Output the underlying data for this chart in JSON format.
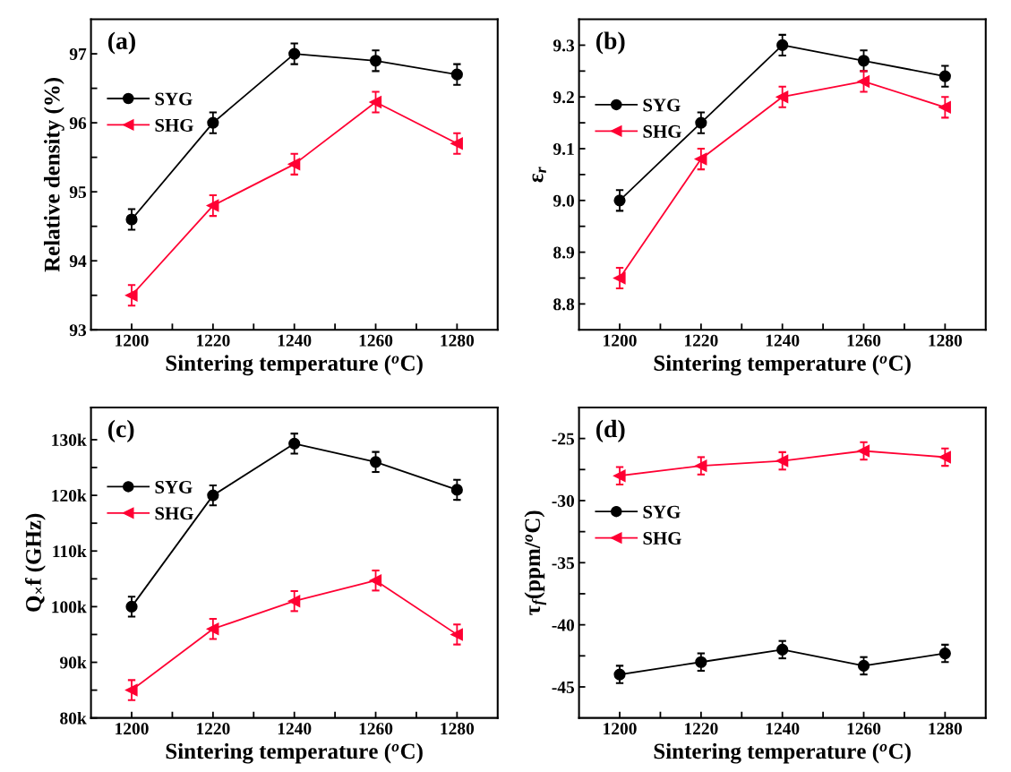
{
  "chart_data": [
    {
      "type": "line",
      "xlabel": "Sintering temperature ($^{o}$C)",
      "ylabel": "Relative density (%)",
      "annotations": [
        "(a)"
      ],
      "legend": "upper left",
      "grid": false,
      "x": [
        1200,
        1220,
        1240,
        1260,
        1280
      ],
      "xlim": [
        1190,
        1290
      ],
      "xticks": [
        1200,
        {
          "value": 1210,
          "label": null
        },
        1220,
        {
          "value": 1230,
          "label": null
        },
        1240,
        {
          "value": 1250,
          "label": null
        },
        1260,
        {
          "value": 1270,
          "label": null
        },
        1280
      ],
      "ylim": [
        93,
        97.5
      ],
      "yticks": [
        93,
        {
          "value": 93.5,
          "label": null
        },
        94,
        {
          "value": 94.5,
          "label": null
        },
        95,
        {
          "value": 95.5,
          "label": null
        },
        96,
        {
          "value": 96.5,
          "label": null
        },
        97
      ],
      "series": [
        {
          "name": "SYG",
          "color": "#000000",
          "marker": "circle",
          "values": [
            94.6,
            96.0,
            97.0,
            96.9,
            96.7
          ],
          "errors": [
            0.15,
            0.15,
            0.15,
            0.15,
            0.15
          ]
        },
        {
          "name": "SHG",
          "color": "#ff0033",
          "marker": "triangle",
          "values": [
            93.5,
            94.8,
            95.4,
            96.3,
            95.7
          ],
          "errors": [
            0.15,
            0.15,
            0.15,
            0.15,
            0.15
          ]
        }
      ]
    },
    {
      "type": "line",
      "xlabel": "Sintering temperature ($^{o}$C)",
      "ylabel": "ε$_{r}$",
      "annotations": [
        "(b)"
      ],
      "legend": "upper left",
      "grid": false,
      "x": [
        1200,
        1220,
        1240,
        1260,
        1280
      ],
      "xlim": [
        1190,
        1290
      ],
      "xticks": [
        1200,
        {
          "value": 1210,
          "label": null
        },
        1220,
        {
          "value": 1230,
          "label": null
        },
        1240,
        {
          "value": 1250,
          "label": null
        },
        1260,
        {
          "value": 1270,
          "label": null
        },
        1280
      ],
      "ylim": [
        8.75,
        9.35
      ],
      "yticks": [
        {
          "value": 8.8,
          "label": "8.8"
        },
        {
          "value": 8.85,
          "label": null
        },
        {
          "value": 8.9,
          "label": "8.9"
        },
        {
          "value": 8.95,
          "label": null
        },
        {
          "value": 9.0,
          "label": "9.0"
        },
        {
          "value": 9.05,
          "label": null
        },
        {
          "value": 9.1,
          "label": "9.1"
        },
        {
          "value": 9.15,
          "label": null
        },
        {
          "value": 9.2,
          "label": "9.2"
        },
        {
          "value": 9.25,
          "label": null
        },
        {
          "value": 9.3,
          "label": "9.3"
        }
      ],
      "series": [
        {
          "name": "SYG",
          "color": "#000000",
          "marker": "circle",
          "values": [
            9.0,
            9.15,
            9.3,
            9.27,
            9.24
          ],
          "errors": [
            0.02,
            0.02,
            0.02,
            0.02,
            0.02
          ]
        },
        {
          "name": "SHG",
          "color": "#ff0033",
          "marker": "triangle",
          "values": [
            8.85,
            9.08,
            9.2,
            9.23,
            9.18
          ],
          "errors": [
            0.02,
            0.02,
            0.02,
            0.02,
            0.02
          ]
        }
      ]
    },
    {
      "type": "line",
      "xlabel": "Sintering temperature ($^{o}$C)",
      "ylabel": "Q$_{×}$f (GHz)",
      "annotations": [
        "(c)"
      ],
      "legend": "upper left",
      "grid": false,
      "x": [
        1200,
        1220,
        1240,
        1260,
        1280
      ],
      "xlim": [
        1190,
        1290
      ],
      "xticks": [
        1200,
        {
          "value": 1210,
          "label": null
        },
        1220,
        {
          "value": 1230,
          "label": null
        },
        1240,
        {
          "value": 1250,
          "label": null
        },
        1260,
        {
          "value": 1270,
          "label": null
        },
        1280
      ],
      "ylim": [
        80000,
        135800
      ],
      "yticks": [
        {
          "value": 80000,
          "label": "80k"
        },
        {
          "value": 85000,
          "label": null
        },
        {
          "value": 90000,
          "label": "90k"
        },
        {
          "value": 95000,
          "label": null
        },
        {
          "value": 100000,
          "label": "100k"
        },
        {
          "value": 105000,
          "label": null
        },
        {
          "value": 110000,
          "label": "110k"
        },
        {
          "value": 115000,
          "label": null
        },
        {
          "value": 120000,
          "label": "120k"
        },
        {
          "value": 125000,
          "label": null
        },
        {
          "value": 130000,
          "label": "130k"
        }
      ],
      "series": [
        {
          "name": "SYG",
          "color": "#000000",
          "marker": "circle",
          "values": [
            100000,
            120000,
            129300,
            126000,
            121000
          ],
          "errors": [
            1800,
            1800,
            1800,
            1800,
            1800
          ]
        },
        {
          "name": "SHG",
          "color": "#ff0033",
          "marker": "triangle",
          "values": [
            85000,
            96000,
            101000,
            104700,
            95000
          ],
          "errors": [
            1800,
            1800,
            1800,
            1800,
            1800
          ]
        }
      ]
    },
    {
      "type": "line",
      "xlabel": "Sintering temperature ($^{o}$C)",
      "ylabel": "τ$_{f}$(ppm/$^{o}$C)",
      "annotations": [
        "(d)"
      ],
      "legend": "upper left",
      "grid": false,
      "x": [
        1200,
        1220,
        1240,
        1260,
        1280
      ],
      "xlim": [
        1190,
        1290
      ],
      "xticks": [
        1200,
        {
          "value": 1210,
          "label": null
        },
        1220,
        {
          "value": 1230,
          "label": null
        },
        1240,
        {
          "value": 1250,
          "label": null
        },
        1260,
        {
          "value": 1270,
          "label": null
        },
        1280
      ],
      "ylim": [
        -47.5,
        -22.5
      ],
      "yticks": [
        -45,
        {
          "value": -42.5,
          "label": null
        },
        -40,
        {
          "value": -37.5,
          "label": null
        },
        -35,
        {
          "value": -32.5,
          "label": null
        },
        -30,
        {
          "value": -27.5,
          "label": null
        },
        -25
      ],
      "series": [
        {
          "name": "SYG",
          "color": "#000000",
          "marker": "circle",
          "values": [
            -44,
            -43,
            -42,
            -43.3,
            -42.3
          ],
          "errors": [
            0.7,
            0.7,
            0.7,
            0.7,
            0.7
          ]
        },
        {
          "name": "SHG",
          "color": "#ff0033",
          "marker": "triangle",
          "values": [
            -28,
            -27.2,
            -26.8,
            -26,
            -26.5
          ],
          "errors": [
            0.7,
            0.7,
            0.7,
            0.7,
            0.7
          ]
        }
      ]
    }
  ]
}
